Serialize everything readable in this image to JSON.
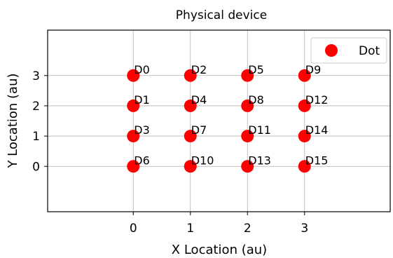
{
  "chart_data": {
    "type": "scatter",
    "title": "Physical device",
    "xlabel": "X Location (au)",
    "ylabel": "Y Location (au)",
    "xlim": [
      -1.5,
      4.5
    ],
    "ylim": [
      -1.5,
      4.5
    ],
    "xticks": [
      0,
      1,
      2,
      3
    ],
    "yticks": [
      0,
      1,
      2,
      3
    ],
    "grid": true,
    "legend": {
      "placement": "top-right",
      "entries": [
        "Dot"
      ]
    },
    "marker_color": "#ff0000",
    "points": [
      {
        "label": "D0",
        "x": 0,
        "y": 3
      },
      {
        "label": "D1",
        "x": 0,
        "y": 2
      },
      {
        "label": "D2",
        "x": 1,
        "y": 3
      },
      {
        "label": "D3",
        "x": 0,
        "y": 1
      },
      {
        "label": "D4",
        "x": 1,
        "y": 2
      },
      {
        "label": "D5",
        "x": 2,
        "y": 3
      },
      {
        "label": "D6",
        "x": 0,
        "y": 0
      },
      {
        "label": "D7",
        "x": 1,
        "y": 1
      },
      {
        "label": "D8",
        "x": 2,
        "y": 2
      },
      {
        "label": "D9",
        "x": 3,
        "y": 3
      },
      {
        "label": "D10",
        "x": 1,
        "y": 0
      },
      {
        "label": "D11",
        "x": 2,
        "y": 1
      },
      {
        "label": "D12",
        "x": 3,
        "y": 2
      },
      {
        "label": "D13",
        "x": 2,
        "y": 0
      },
      {
        "label": "D14",
        "x": 3,
        "y": 1
      },
      {
        "label": "D15",
        "x": 3,
        "y": 0
      }
    ]
  }
}
